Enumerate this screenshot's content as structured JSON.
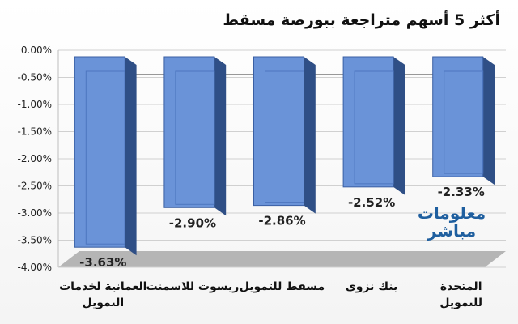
{
  "chart_data": {
    "type": "bar",
    "title": "أكثر 5 أسهم متراجعة ببورصة مسقط",
    "categories": [
      "العمانية لخدمات التمويل",
      "ريسوت للاسمنت",
      "مسقط للتمويل",
      "بنك نزوى",
      "المتحدة للتمويل"
    ],
    "values": [
      -3.63,
      -2.9,
      -2.86,
      -2.52,
      -2.33
    ],
    "data_labels": [
      "-3.63%",
      "-2.90%",
      "-2.86%",
      "-2.52%",
      "-2.33%"
    ],
    "y_ticks": [
      "0.00%",
      "-0.50%",
      "-1.00%",
      "-1.50%",
      "-2.00%",
      "-2.50%",
      "-3.00%",
      "-3.50%",
      "-4.00%"
    ],
    "ylim": [
      -4.0,
      0.0
    ],
    "grid": true,
    "legend": "none",
    "bar_color": "#6a93d8"
  },
  "watermark": {
    "line1": "معلومات",
    "line2": "مباشر"
  }
}
